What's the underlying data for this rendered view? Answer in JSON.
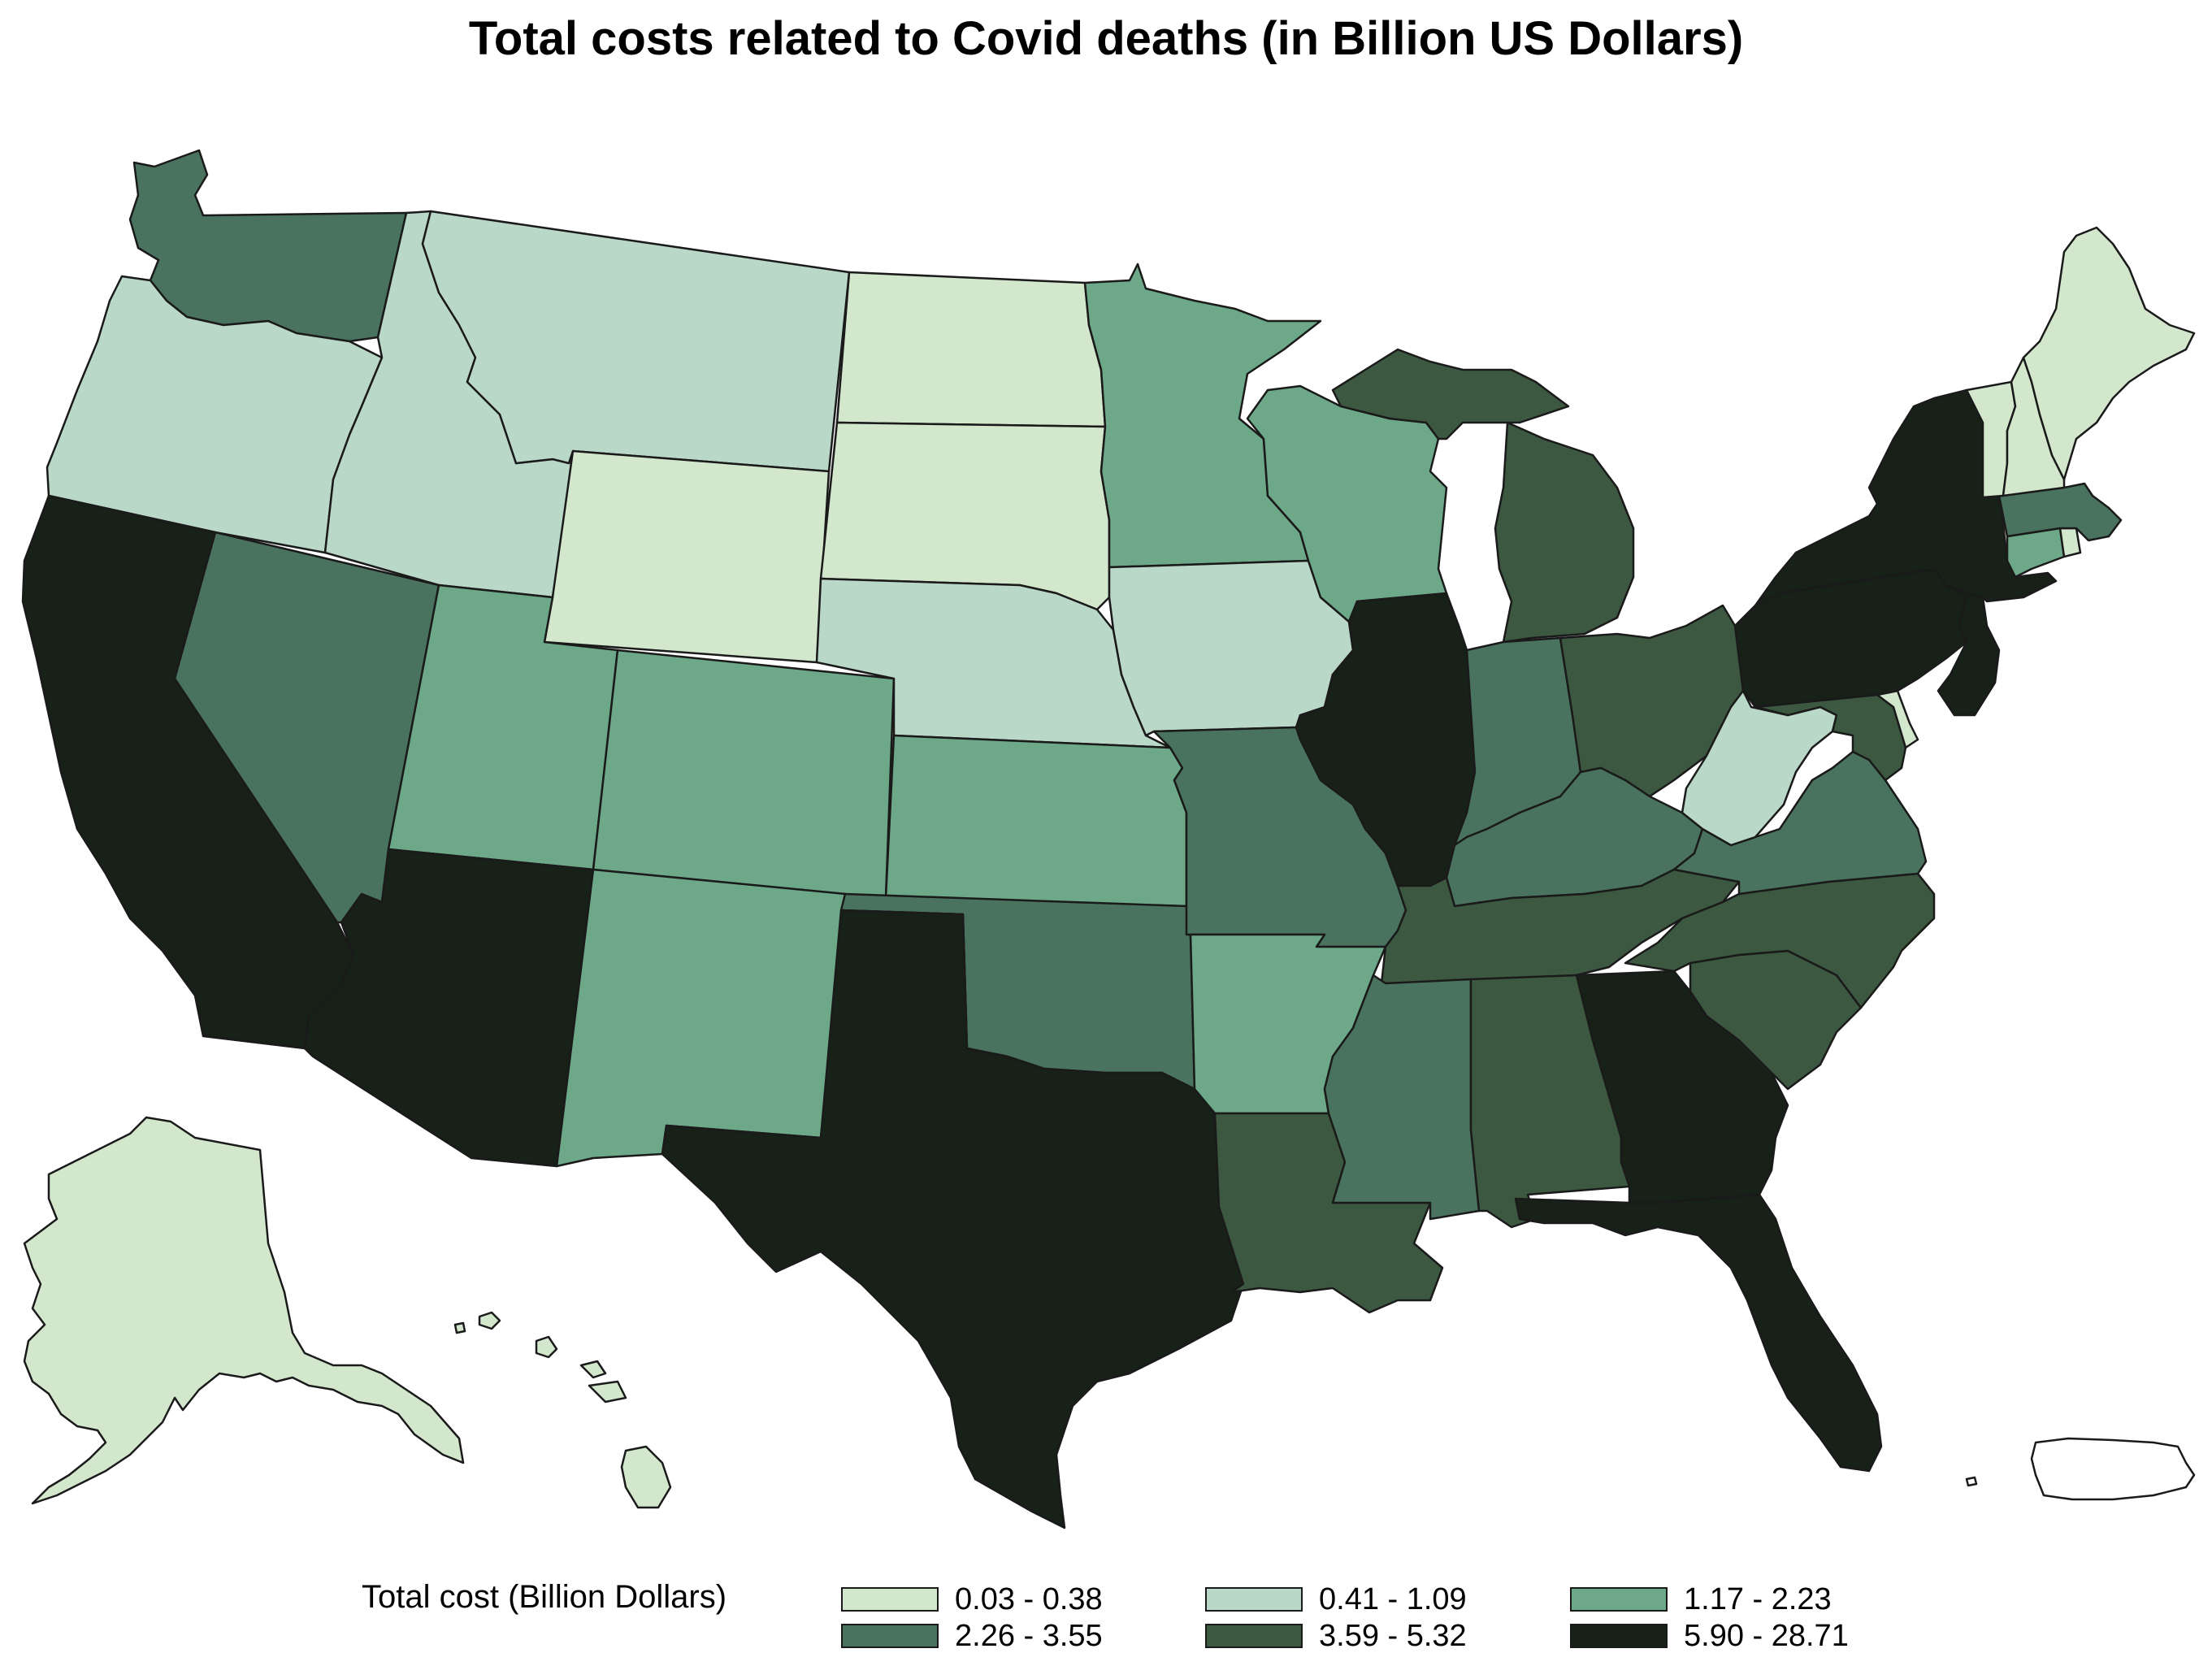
{
  "title": "Total costs related to Covid deaths (in Billion US Dollars)",
  "legend": {
    "title": "Total cost (Billion Dollars)",
    "bins": [
      {
        "label": "0.03 - 0.38",
        "color": "#d3e7cd"
      },
      {
        "label": "0.41 - 1.09",
        "color": "#bad8c8"
      },
      {
        "label": "1.17 - 2.23",
        "color": "#6da888"
      },
      {
        "label": "2.26 - 3.55",
        "color": "#4a735f"
      },
      {
        "label": "3.59 - 5.32",
        "color": "#3c5840"
      },
      {
        "label": "5.90 - 28.71",
        "color": "#172118"
      }
    ]
  },
  "states": [
    {
      "name": "Washington",
      "bin": 3
    },
    {
      "name": "Oregon",
      "bin": 1
    },
    {
      "name": "California",
      "bin": 5
    },
    {
      "name": "Nevada",
      "bin": 3
    },
    {
      "name": "Idaho",
      "bin": 1
    },
    {
      "name": "Montana",
      "bin": 1
    },
    {
      "name": "Wyoming",
      "bin": 0
    },
    {
      "name": "Utah",
      "bin": 2
    },
    {
      "name": "Arizona",
      "bin": 5
    },
    {
      "name": "Colorado",
      "bin": 2
    },
    {
      "name": "New Mexico",
      "bin": 2
    },
    {
      "name": "North Dakota",
      "bin": 0
    },
    {
      "name": "South Dakota",
      "bin": 0
    },
    {
      "name": "Nebraska",
      "bin": 1
    },
    {
      "name": "Kansas",
      "bin": 2
    },
    {
      "name": "Oklahoma",
      "bin": 3
    },
    {
      "name": "Texas",
      "bin": 5
    },
    {
      "name": "Minnesota",
      "bin": 2
    },
    {
      "name": "Iowa",
      "bin": 1
    },
    {
      "name": "Missouri",
      "bin": 3
    },
    {
      "name": "Arkansas",
      "bin": 2
    },
    {
      "name": "Louisiana",
      "bin": 4
    },
    {
      "name": "Wisconsin",
      "bin": 2
    },
    {
      "name": "Illinois",
      "bin": 5
    },
    {
      "name": "Michigan",
      "bin": 4
    },
    {
      "name": "Indiana",
      "bin": 3
    },
    {
      "name": "Ohio",
      "bin": 4
    },
    {
      "name": "Kentucky",
      "bin": 3
    },
    {
      "name": "Tennessee",
      "bin": 4
    },
    {
      "name": "Mississippi",
      "bin": 3
    },
    {
      "name": "Alabama",
      "bin": 4
    },
    {
      "name": "Georgia",
      "bin": 5
    },
    {
      "name": "Florida",
      "bin": 5
    },
    {
      "name": "South Carolina",
      "bin": 4
    },
    {
      "name": "North Carolina",
      "bin": 4
    },
    {
      "name": "Virginia",
      "bin": 3
    },
    {
      "name": "West Virginia",
      "bin": 1
    },
    {
      "name": "Maryland",
      "bin": 4
    },
    {
      "name": "Delaware",
      "bin": 0
    },
    {
      "name": "Pennsylvania",
      "bin": 5
    },
    {
      "name": "New Jersey",
      "bin": 5
    },
    {
      "name": "New York",
      "bin": 5
    },
    {
      "name": "Connecticut",
      "bin": 2
    },
    {
      "name": "Rhode Island",
      "bin": 0
    },
    {
      "name": "Massachusetts",
      "bin": 3
    },
    {
      "name": "Vermont",
      "bin": 0
    },
    {
      "name": "New Hampshire",
      "bin": 0
    },
    {
      "name": "Maine",
      "bin": 0
    },
    {
      "name": "Alaska",
      "bin": 0
    },
    {
      "name": "Hawaii",
      "bin": 0
    },
    {
      "name": "Puerto Rico",
      "bin": -1
    }
  ]
}
